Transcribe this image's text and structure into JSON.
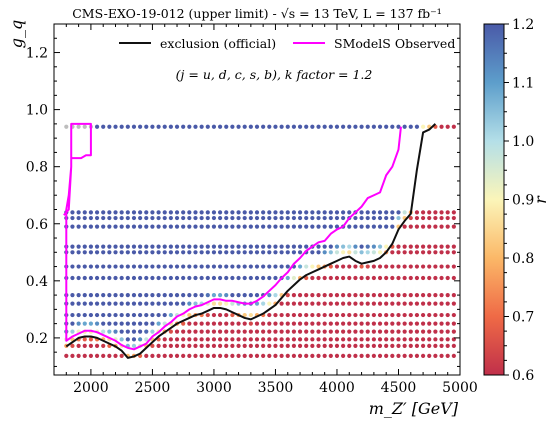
{
  "chart_data": {
    "type": "scatter",
    "title": "CMS-EXO-19-012 (upper limit) - √s = 13 TeV, L = 137 fb⁻¹",
    "annotation": "(j = u, d, c, s, b), k factor = 1.2",
    "xlabel": "m_Z′ [GeV]",
    "ylabel": "g_q",
    "xlim": [
      1700,
      5000
    ],
    "ylim": [
      0.07,
      1.3
    ],
    "x_ticks": [
      2000,
      2500,
      3000,
      3500,
      4000,
      4500,
      5000
    ],
    "x_tick_labels": [
      "2000",
      "2500",
      "3000",
      "3500",
      "4000",
      "4500",
      "5000"
    ],
    "y_ticks": [
      0.2,
      0.4,
      0.6,
      0.8,
      1.0,
      1.2
    ],
    "y_tick_labels": [
      "0.2",
      "0.4",
      "0.6",
      "0.8",
      "1.0",
      "1.2"
    ],
    "legend_position": "top-center",
    "colorbar": {
      "label": "r",
      "range": [
        0.6,
        1.2
      ],
      "ticks": [
        0.6,
        0.7,
        0.8,
        0.9,
        1.0,
        1.1,
        1.2
      ],
      "tick_labels": [
        "0.6",
        "0.7",
        "0.8",
        "0.9",
        "1.0",
        "1.1",
        "1.2"
      ],
      "colormap": "RdYlBu",
      "colors": [
        "#c0304a",
        "#ef6a46",
        "#fbb868",
        "#fbf5b9",
        "#b4dfe8",
        "#5d9ecb",
        "#4a5aa8"
      ]
    },
    "grid_x": {
      "start": 1800,
      "end": 4950,
      "step": 50
    },
    "grid_y": [
      0.137,
      0.172,
      0.195,
      0.222,
      0.25,
      0.28,
      0.32,
      0.35,
      0.41,
      0.45,
      0.5,
      0.52,
      0.59,
      0.62,
      0.64,
      0.94
    ],
    "series": [
      {
        "name": "exclusion (official)",
        "color": "#111111",
        "x": [
          1800,
          1850,
          1900,
          1950,
          2000,
          2050,
          2100,
          2150,
          2200,
          2250,
          2300,
          2350,
          2400,
          2450,
          2500,
          2550,
          2600,
          2650,
          2700,
          2750,
          2800,
          2850,
          2900,
          2950,
          3000,
          3050,
          3100,
          3150,
          3200,
          3250,
          3300,
          3350,
          3400,
          3450,
          3500,
          3550,
          3600,
          3650,
          3700,
          3750,
          3800,
          3850,
          3900,
          3950,
          4000,
          4050,
          4100,
          4150,
          4200,
          4250,
          4300,
          4350,
          4400,
          4450,
          4500,
          4550,
          4600,
          4650,
          4700,
          4750,
          4800
        ],
        "y": [
          0.17,
          0.185,
          0.2,
          0.205,
          0.205,
          0.2,
          0.19,
          0.18,
          0.17,
          0.155,
          0.13,
          0.135,
          0.145,
          0.165,
          0.185,
          0.205,
          0.22,
          0.235,
          0.25,
          0.26,
          0.27,
          0.28,
          0.285,
          0.295,
          0.305,
          0.305,
          0.3,
          0.29,
          0.28,
          0.27,
          0.265,
          0.275,
          0.285,
          0.3,
          0.315,
          0.34,
          0.365,
          0.385,
          0.405,
          0.42,
          0.43,
          0.44,
          0.45,
          0.46,
          0.47,
          0.48,
          0.485,
          0.47,
          0.46,
          0.465,
          0.47,
          0.48,
          0.5,
          0.53,
          0.58,
          0.61,
          0.635,
          0.79,
          0.92,
          0.93,
          0.95
        ]
      },
      {
        "name": "SModelS Observed",
        "color": "#ff00ff",
        "x": [
          1780,
          1800,
          1820,
          1840,
          1840,
          1880,
          1920,
          1960,
          2000,
          2000,
          2000,
          1840,
          1840,
          1820,
          1800,
          1800,
          1850,
          1900,
          1950,
          2000,
          2050,
          2100,
          2150,
          2200,
          2250,
          2300,
          2350,
          2400,
          2450,
          2500,
          2550,
          2600,
          2650,
          2700,
          2750,
          2800,
          2850,
          2900,
          2950,
          3000,
          3050,
          3100,
          3150,
          3200,
          3250,
          3300,
          3350,
          3400,
          3450,
          3500,
          3550,
          3600,
          3650,
          3700,
          3750,
          3800,
          3850,
          3900,
          3950,
          4000,
          4050,
          4100,
          4150,
          4200,
          4250,
          4300,
          4350,
          4400,
          4450,
          4500,
          4520
        ],
        "y": [
          0.63,
          0.64,
          0.65,
          0.8,
          0.83,
          0.83,
          0.83,
          0.84,
          0.84,
          0.92,
          0.95,
          0.95,
          0.8,
          0.7,
          0.65,
          0.19,
          0.205,
          0.215,
          0.225,
          0.225,
          0.22,
          0.21,
          0.2,
          0.19,
          0.175,
          0.165,
          0.16,
          0.17,
          0.18,
          0.205,
          0.22,
          0.24,
          0.255,
          0.275,
          0.285,
          0.3,
          0.31,
          0.315,
          0.325,
          0.335,
          0.335,
          0.33,
          0.33,
          0.325,
          0.32,
          0.32,
          0.33,
          0.345,
          0.365,
          0.385,
          0.41,
          0.43,
          0.46,
          0.48,
          0.505,
          0.52,
          0.535,
          0.54,
          0.565,
          0.58,
          0.59,
          0.62,
          0.64,
          0.66,
          0.69,
          0.7,
          0.71,
          0.77,
          0.8,
          0.86,
          0.94
        ]
      }
    ]
  }
}
